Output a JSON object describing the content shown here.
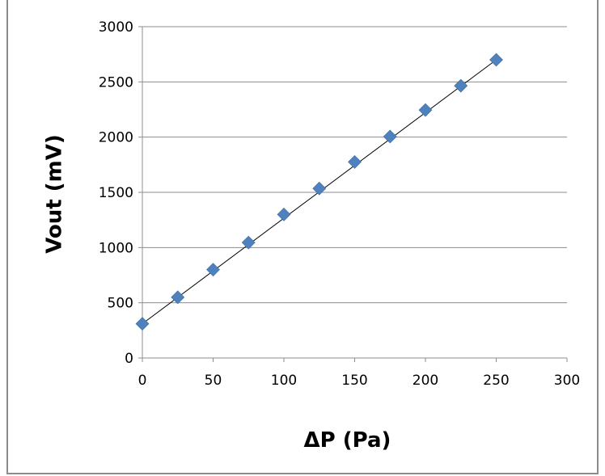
{
  "chart_data": {
    "type": "scatter",
    "title": "",
    "xlabel": "ΔP (Pa)",
    "ylabel": "Vout (mV)",
    "xlim": [
      0,
      300
    ],
    "ylim": [
      0,
      3000
    ],
    "x_ticks": [
      0,
      50,
      100,
      150,
      200,
      250,
      300
    ],
    "y_ticks": [
      0,
      500,
      1000,
      1500,
      2000,
      2500,
      3000
    ],
    "grid": "horizontal",
    "legend": "none",
    "series": [
      {
        "marker": "diamond",
        "color": "#4f81bd",
        "x": [
          0,
          25,
          50,
          75,
          100,
          125,
          150,
          175,
          200,
          225,
          250
        ],
        "y": [
          310,
          550,
          800,
          1045,
          1300,
          1535,
          1775,
          2005,
          2245,
          2465,
          2700
        ]
      }
    ],
    "trendline": {
      "type": "linear",
      "color": "#000000",
      "x": [
        0,
        250
      ],
      "y": [
        310,
        2700
      ]
    }
  }
}
